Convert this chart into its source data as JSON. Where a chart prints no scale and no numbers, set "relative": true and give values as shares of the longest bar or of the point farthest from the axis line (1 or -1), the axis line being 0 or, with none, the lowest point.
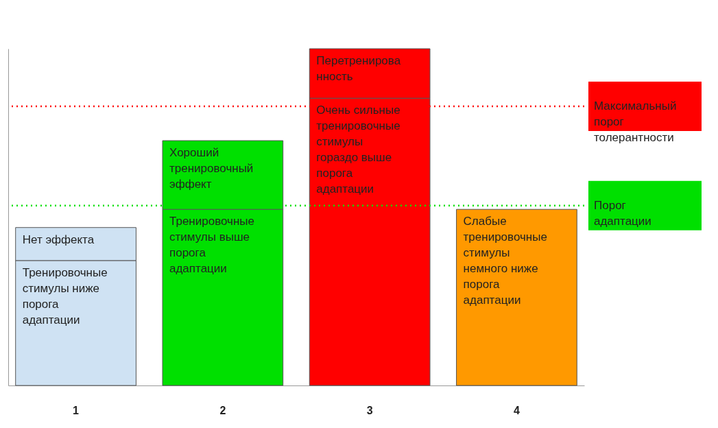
{
  "chart_data": {
    "type": "bar",
    "relative": true,
    "stacked": true,
    "legend": false,
    "categories": [
      "1",
      "2",
      "3",
      "4"
    ],
    "series": [
      {
        "colors": [
          "#cfe2f3",
          "#00e000",
          "#ff0000",
          "#ff9900"
        ],
        "values": [
          0.371,
          0.523,
          0.853,
          0.523
        ]
      },
      {
        "colors": [
          "#cfe2f3",
          "#00e000",
          "#ff0000",
          "#ff9900"
        ],
        "values": [
          0.098,
          0.204,
          0.147,
          null
        ]
      }
    ],
    "ref_lines": [
      {
        "axis": "y",
        "value": 0.829,
        "label": "Максимальный порог толерантности",
        "color": "#ff0000",
        "line_style": "dotted"
      },
      {
        "axis": "y",
        "value": 0.534,
        "label": "Порог адаптации",
        "color": "#00e000",
        "line_style": "dotted"
      }
    ],
    "annotations": [
      {
        "text": "Нет эффекта",
        "x": "1",
        "y": 0.468
      },
      {
        "text": "Тренировочные стимулы ниже порога адаптации",
        "x": "1",
        "y": 0.371
      },
      {
        "text": "Хороший тренировочный эффект",
        "x": "2",
        "y": 0.727
      },
      {
        "text": "Тренировочные стимулы выше порога адаптации",
        "x": "2",
        "y": 0.523
      },
      {
        "text": "Перетренированность",
        "x": "3",
        "y": 1
      },
      {
        "text": "Очень сильные тренировочные стимулы гораздо выше порога адаптации",
        "x": "3",
        "y": 0.853
      },
      {
        "text": "Слабые тренировочные стимулы немного ниже порога адаптации",
        "x": "4",
        "y": 0.523
      }
    ]
  }
}
